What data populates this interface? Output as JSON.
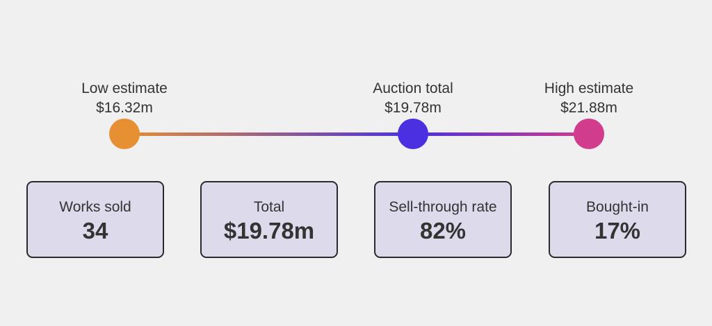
{
  "scale": {
    "low": {
      "label": "Low estimate",
      "value": "$16.32m"
    },
    "auction": {
      "label": "Auction total",
      "value": "$19.78m"
    },
    "high": {
      "label": "High estimate",
      "value": "$21.88m"
    },
    "colors": {
      "low": "#e68f33",
      "auction": "#4a30e0",
      "high": "#d23c8c"
    }
  },
  "cards": [
    {
      "label": "Works sold",
      "value": "34"
    },
    {
      "label": "Total",
      "value": "$19.78m"
    },
    {
      "label": "Sell-through rate",
      "value": "82%"
    },
    {
      "label": "Bought-in",
      "value": "17%"
    }
  ]
}
